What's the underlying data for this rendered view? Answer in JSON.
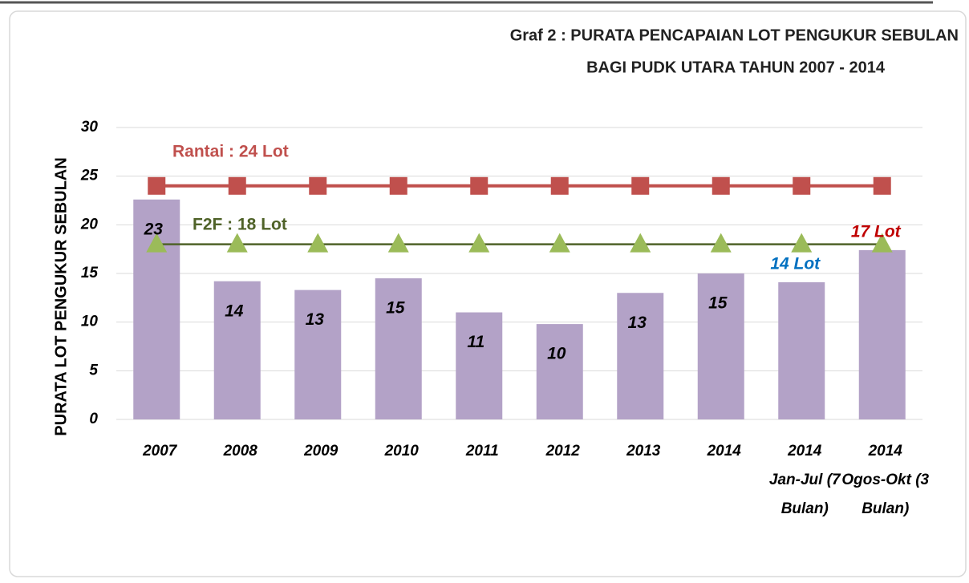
{
  "chart_data": {
    "type": "bar",
    "title": [
      "Graf 2 : PURATA PENCAPAIAN LOT PENGUKUR SEBULAN",
      "BAGI PUDK UTARA TAHUN 2007 - 2014"
    ],
    "y_label": "PURATA LOT PENGUKUR SEBULAN",
    "categories": [
      "2007",
      "2008",
      "2009",
      "2010",
      "2011",
      "2012",
      "2013",
      "2014",
      "2014 Jan-Jul (7 Bulan)",
      "2014 Ogos-Okt (3 Bulan)"
    ],
    "values": [
      22.6,
      14.2,
      13.3,
      14.5,
      11,
      9.8,
      13,
      15,
      14.1,
      17.4
    ],
    "value_labels": [
      "23",
      "14",
      "13",
      "15",
      "11",
      "10",
      "13",
      "15",
      "14 Lot",
      "17 Lot"
    ],
    "value_label_colors": [
      "#000000",
      "#000000",
      "#000000",
      "#000000",
      "#000000",
      "#000000",
      "#000000",
      "#000000",
      "#0070c0",
      "#c00000"
    ],
    "color": "#b3a2c7",
    "lines": [
      {
        "name": "Rantai : 24 Lot",
        "color": "#c0504d",
        "marker": "square",
        "marker_color": "#c0504d",
        "values": [
          24,
          24,
          24,
          24,
          24,
          24,
          24,
          24,
          24,
          24
        ]
      },
      {
        "name": "F2F : 18 Lot",
        "color": "#4f6228",
        "marker": "triangle",
        "marker_color": "#9bbb59",
        "values": [
          18,
          18,
          18,
          18,
          18,
          18,
          18,
          18,
          18,
          18
        ]
      }
    ],
    "ylim": [
      0,
      30
    ],
    "yticks": [
      0,
      5,
      10,
      15,
      20,
      25,
      30
    ],
    "grid": true
  }
}
